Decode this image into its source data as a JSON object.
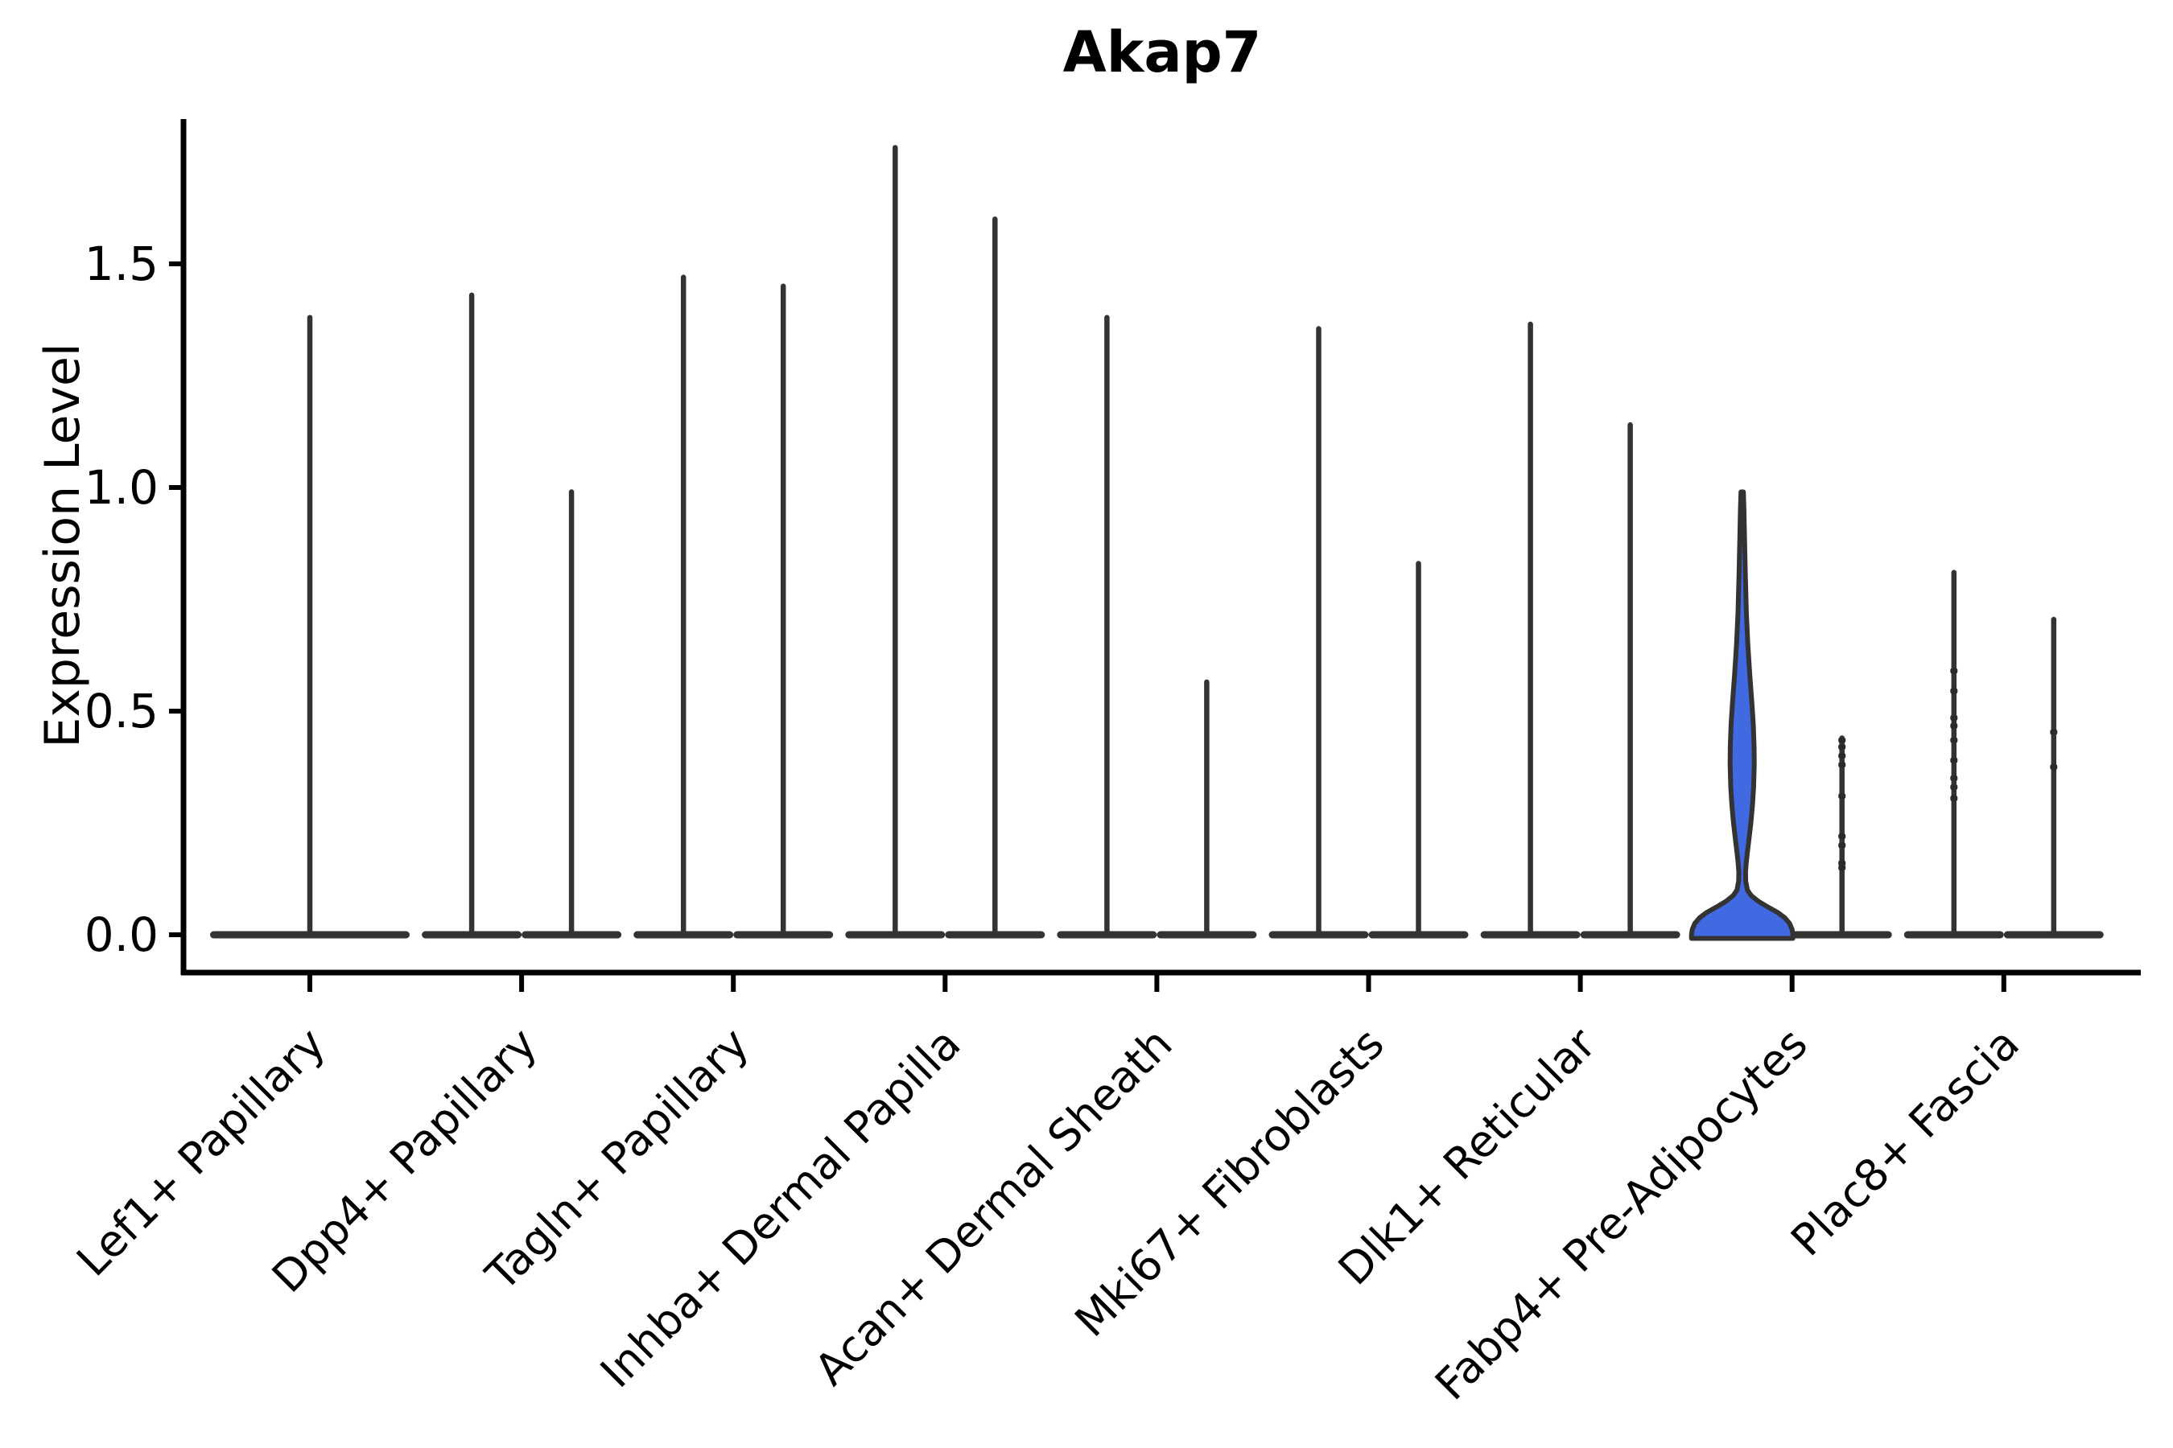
{
  "chart_data": {
    "type": "violin",
    "title": "Akap7",
    "ylabel": "Expression Level",
    "xlabel": "",
    "grid": false,
    "legend": "none",
    "yticks": [
      "0.0",
      "0.5",
      "1.0",
      "1.5"
    ],
    "ytick_values": [
      0.0,
      0.5,
      1.0,
      1.5
    ],
    "ylim": [
      -0.09,
      1.82
    ],
    "categories": [
      "Lef1+ Papillary",
      "Dpp4+ Papillary",
      "Tagln+ Papillary",
      "Inhba+ Dermal Papilla",
      "Acan+ Dermal Sheath",
      "Mki67+ Fibroblasts",
      "Dlk1+ Reticular",
      "Fabp4+ Pre-Adipocytes",
      "Plac8+ Fascia"
    ],
    "violins": [
      {
        "category": "Lef1+ Papillary",
        "position": "center",
        "max": 1.38,
        "half_width": 124,
        "fill": "none",
        "dots": []
      },
      {
        "category": "Dpp4+ Papillary",
        "position": "left",
        "max": 1.43,
        "half_width": 62,
        "fill": "none",
        "dots": []
      },
      {
        "category": "Dpp4+ Papillary",
        "position": "right",
        "max": 0.99,
        "half_width": 62,
        "fill": "none",
        "dots": []
      },
      {
        "category": "Tagln+ Papillary",
        "position": "left",
        "max": 1.47,
        "half_width": 62,
        "fill": "none",
        "dots": []
      },
      {
        "category": "Tagln+ Papillary",
        "position": "right",
        "max": 1.45,
        "half_width": 62,
        "fill": "none",
        "dots": []
      },
      {
        "category": "Inhba+ Dermal Papilla",
        "position": "left",
        "max": 1.76,
        "half_width": 62,
        "fill": "none",
        "dots": []
      },
      {
        "category": "Inhba+ Dermal Papilla",
        "position": "right",
        "max": 1.6,
        "half_width": 62,
        "fill": "none",
        "dots": []
      },
      {
        "category": "Acan+ Dermal Sheath",
        "position": "left",
        "max": 1.38,
        "half_width": 62,
        "fill": "none",
        "dots": []
      },
      {
        "category": "Acan+ Dermal Sheath",
        "position": "right",
        "max": 0.565,
        "half_width": 62,
        "fill": "none",
        "dots": []
      },
      {
        "category": "Mki67+ Fibroblasts",
        "position": "left",
        "max": 1.355,
        "half_width": 62,
        "fill": "none",
        "dots": []
      },
      {
        "category": "Mki67+ Fibroblasts",
        "position": "right",
        "max": 0.83,
        "half_width": 62,
        "fill": "none",
        "dots": []
      },
      {
        "category": "Dlk1+ Reticular",
        "position": "left",
        "max": 1.365,
        "half_width": 62,
        "fill": "none",
        "dots": []
      },
      {
        "category": "Dlk1+ Reticular",
        "position": "right",
        "max": 1.14,
        "half_width": 62,
        "fill": "none",
        "dots": []
      },
      {
        "category": "Fabp4+ Pre-Adipocytes",
        "position": "left",
        "max": 0.99,
        "half_width": 63,
        "fill": "#4169E1",
        "shape": "bulge",
        "profile": [
          [
            0.99,
            1.5
          ],
          [
            0.95,
            2.2
          ],
          [
            0.88,
            3.0
          ],
          [
            0.8,
            4.0
          ],
          [
            0.72,
            5.2
          ],
          [
            0.65,
            7.0
          ],
          [
            0.58,
            9.5
          ],
          [
            0.52,
            12.0
          ],
          [
            0.47,
            13.8
          ],
          [
            0.42,
            14.8
          ],
          [
            0.38,
            15.0
          ],
          [
            0.33,
            14.2
          ],
          [
            0.29,
            12.8
          ],
          [
            0.25,
            10.8
          ],
          [
            0.21,
            8.2
          ],
          [
            0.18,
            6.2
          ],
          [
            0.16,
            5.0
          ],
          [
            0.14,
            4.2
          ],
          [
            0.12,
            4.4
          ],
          [
            0.1,
            6.5
          ],
          [
            0.088,
            11.0
          ],
          [
            0.075,
            20.0
          ],
          [
            0.062,
            32.0
          ],
          [
            0.05,
            44.0
          ],
          [
            0.038,
            53.0
          ],
          [
            0.025,
            59.0
          ],
          [
            0.012,
            62.0
          ],
          [
            0.0,
            63.0
          ]
        ],
        "dots": []
      },
      {
        "category": "Fabp4+ Pre-Adipocytes",
        "position": "right",
        "max": 0.44,
        "half_width": 62,
        "fill": "none",
        "dots": [
          0.435,
          0.42,
          0.4,
          0.38,
          0.31,
          0.22,
          0.2,
          0.16,
          0.15
        ]
      },
      {
        "category": "Plac8+ Fascia",
        "position": "left",
        "max": 0.81,
        "half_width": 62,
        "fill": "none",
        "dots": [
          0.59,
          0.545,
          0.485,
          0.467,
          0.435,
          0.39,
          0.35,
          0.33,
          0.305
        ]
      },
      {
        "category": "Plac8+ Fascia",
        "position": "right",
        "max": 0.705,
        "half_width": 62,
        "fill": "none",
        "dots": [
          0.453,
          0.375
        ]
      }
    ],
    "colors": {
      "violin_stroke": "#333333",
      "blue_fill": "#4169E1",
      "axis": "#000000",
      "dot": "#2b2b2b",
      "background": "#ffffff"
    }
  }
}
